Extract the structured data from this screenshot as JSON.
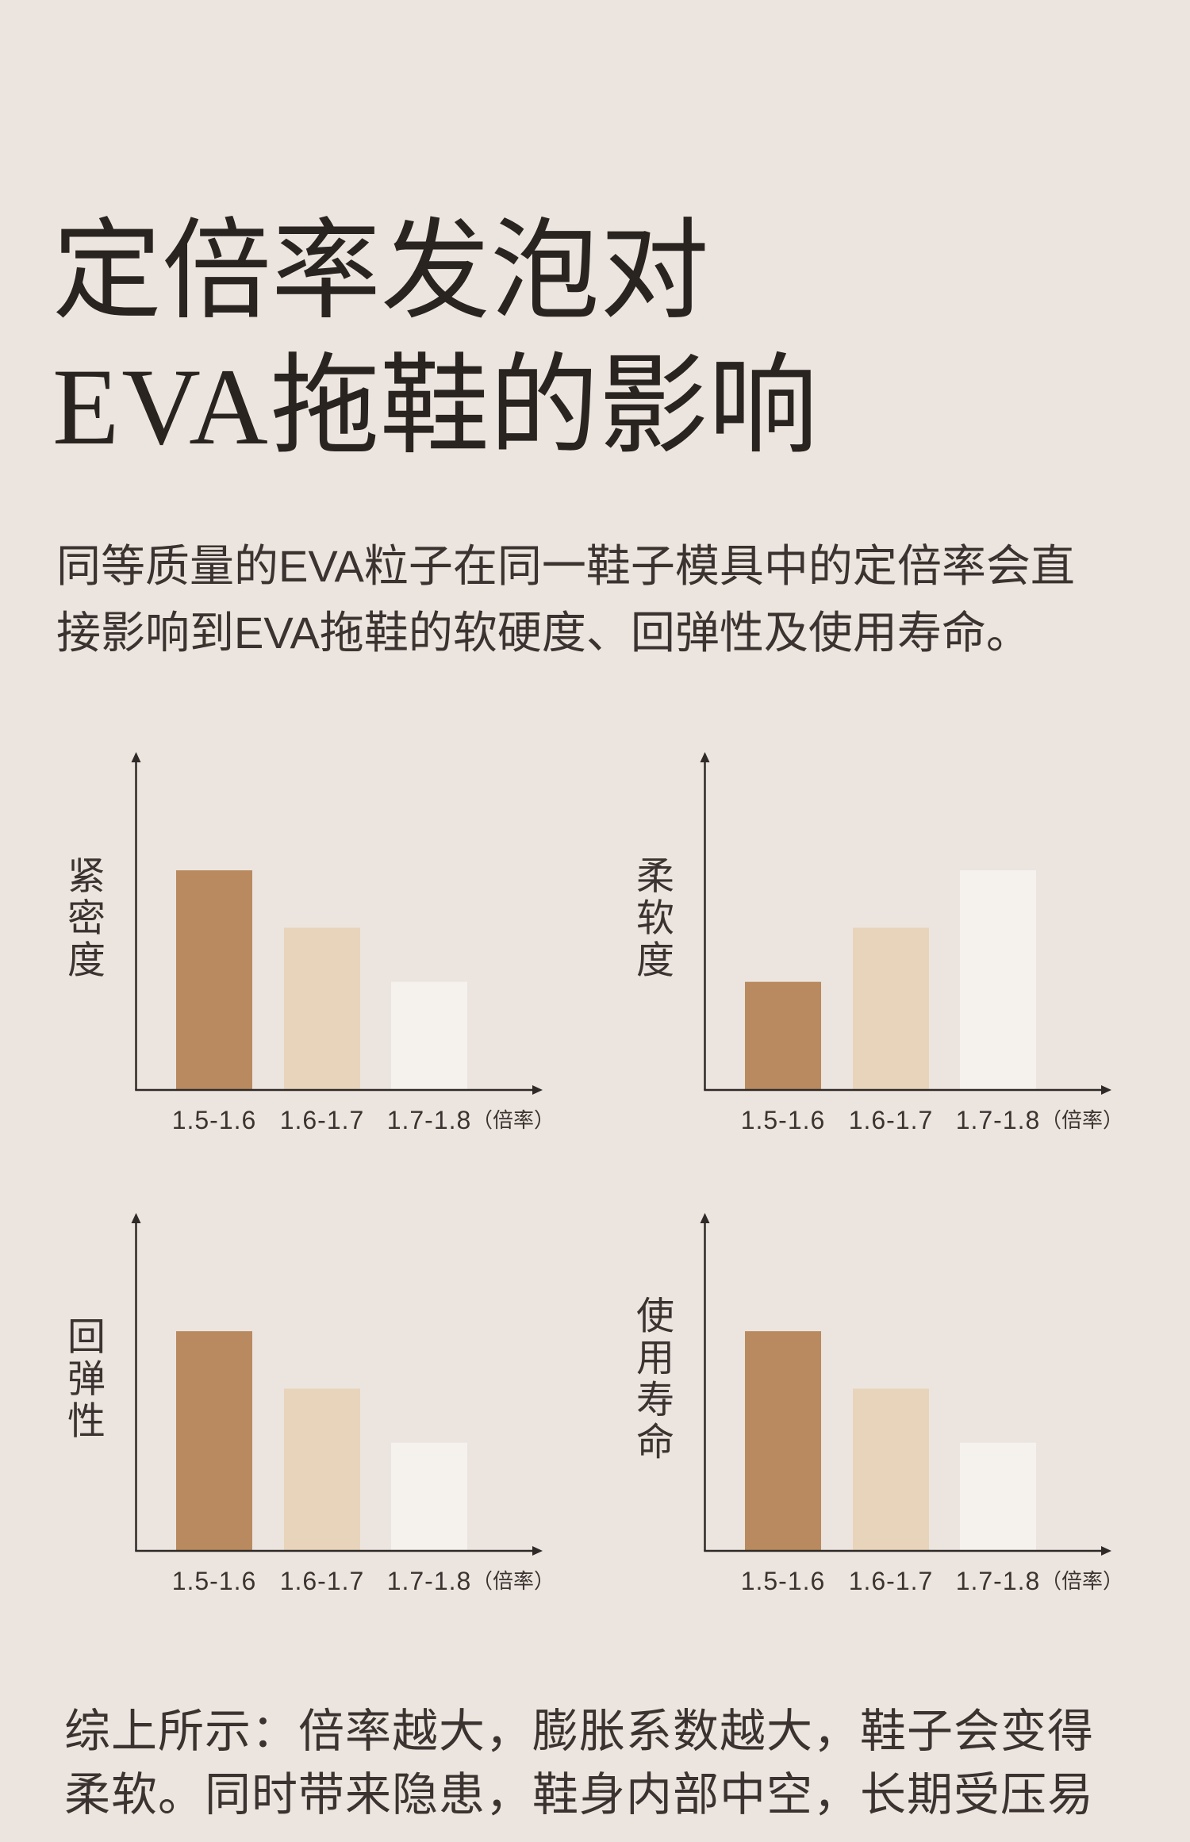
{
  "title": {
    "line1": "定倍率发泡对",
    "line2_latin": "EVA",
    "line2_rest": "拖鞋的影响"
  },
  "intro": {
    "lines": [
      "同等质量的EVA粒子在同一鞋子模具中的定倍率会直",
      "接影响到EVA拖鞋的软硬度、回弹性及使用寿命。"
    ]
  },
  "style": {
    "axis_color": "#2f2a27",
    "bar_colors": [
      "#b98a5f",
      "#e8d4bb",
      "#f5f2ee"
    ]
  },
  "chart_data": [
    {
      "type": "bar",
      "ylabel": "紧密度",
      "xlabel": "（倍率）",
      "categories": [
        "1.5-1.6",
        "1.6-1.7",
        "1.7-1.8"
      ],
      "values": [
        65,
        48,
        32
      ],
      "ylim": [
        0,
        100
      ],
      "grid": false
    },
    {
      "type": "bar",
      "ylabel": "柔软度",
      "xlabel": "（倍率）",
      "categories": [
        "1.5-1.6",
        "1.6-1.7",
        "1.7-1.8"
      ],
      "values": [
        32,
        48,
        65
      ],
      "ylim": [
        0,
        100
      ],
      "grid": false
    },
    {
      "type": "bar",
      "ylabel": "回弹性",
      "xlabel": "（倍率）",
      "categories": [
        "1.5-1.6",
        "1.6-1.7",
        "1.7-1.8"
      ],
      "values": [
        65,
        48,
        32
      ],
      "ylim": [
        0,
        100
      ],
      "grid": false
    },
    {
      "type": "bar",
      "ylabel": "使用寿命",
      "xlabel": "（倍率）",
      "categories": [
        "1.5-1.6",
        "1.6-1.7",
        "1.7-1.8"
      ],
      "values": [
        65,
        48,
        32
      ],
      "ylim": [
        0,
        100
      ],
      "grid": false
    }
  ],
  "summary": {
    "lines": [
      "综上所示：倍率越大，膨胀系数越大，鞋子会变得",
      "柔软。同时带来隐患，鞋身内部中空，长期受压易"
    ]
  }
}
